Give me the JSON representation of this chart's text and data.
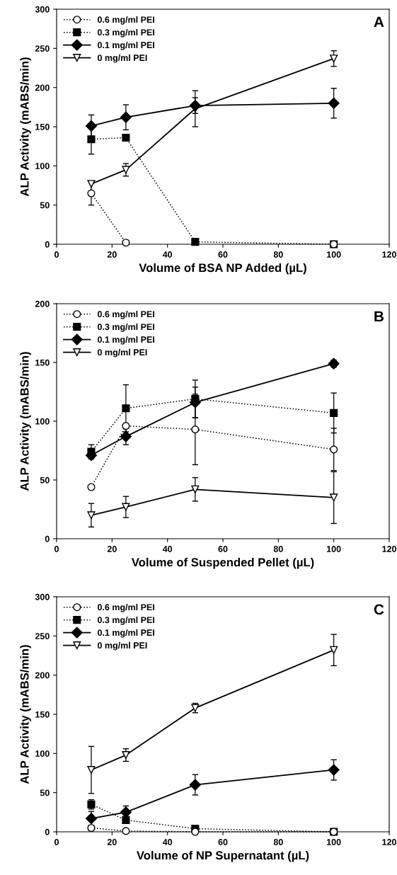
{
  "chart_data": [
    {
      "type": "line",
      "xlabel": "Volume of BSA NP Added (µL)",
      "ylabel": "ALP Activity (mABS/min)",
      "annotations": [
        "A"
      ],
      "xlim": [
        0,
        120
      ],
      "xticks": [
        0,
        20,
        40,
        60,
        80,
        100,
        120
      ],
      "ylim": [
        0,
        300
      ],
      "yticks": [
        0,
        50,
        100,
        150,
        200,
        250,
        300
      ],
      "legend": "top left",
      "grid": false,
      "x": [
        12.5,
        25,
        50,
        100
      ],
      "series": [
        {
          "name": "0.6 mg/ml PEI",
          "color": "#000000",
          "marker": "circle",
          "line_style": "dotted",
          "values": [
            65,
            2,
            null,
            0
          ],
          "errors": [
            15,
            null,
            null,
            null
          ]
        },
        {
          "name": "0.3 mg/ml PEI",
          "color": "#000000",
          "marker": "square",
          "line_style": "dotted",
          "values": [
            134,
            136,
            3,
            0
          ],
          "errors": [
            19,
            3,
            null,
            null
          ]
        },
        {
          "name": "0.1 mg/ml PEI",
          "color": "#000000",
          "marker": "diamond",
          "line_style": "solid",
          "values": [
            151,
            162,
            177,
            180
          ],
          "errors": [
            14,
            16,
            10,
            19
          ]
        },
        {
          "name": "0 mg/ml PEI",
          "color": "#000000",
          "marker": "triangle",
          "line_style": "solid",
          "values": [
            77,
            95,
            173,
            237
          ],
          "errors": [
            null,
            8,
            23,
            10
          ]
        }
      ]
    },
    {
      "type": "line",
      "xlabel": "Volume of Suspended Pellet (µL)",
      "ylabel": "ALP Activity (mABS/min)",
      "annotations": [
        "B"
      ],
      "xlim": [
        0,
        120
      ],
      "xticks": [
        0,
        20,
        40,
        60,
        80,
        100,
        120
      ],
      "ylim": [
        0,
        200
      ],
      "yticks": [
        0,
        50,
        100,
        150,
        200
      ],
      "legend": "top left",
      "grid": false,
      "x": [
        12.5,
        25,
        50,
        100
      ],
      "series": [
        {
          "name": "0.6 mg/ml PEI",
          "color": "#000000",
          "marker": "circle",
          "line_style": "dotted",
          "values": [
            44,
            96,
            93,
            76
          ],
          "errors": [
            null,
            null,
            30,
            18
          ]
        },
        {
          "name": "0.3 mg/ml PEI",
          "color": "#000000",
          "marker": "square",
          "line_style": "dotted",
          "values": [
            74,
            111,
            119,
            107
          ],
          "errors": [
            6,
            20,
            16,
            17
          ]
        },
        {
          "name": "0.1 mg/ml PEI",
          "color": "#000000",
          "marker": "diamond",
          "line_style": "solid",
          "values": [
            71,
            87,
            116,
            149
          ],
          "errors": [
            3,
            7,
            13,
            3
          ]
        },
        {
          "name": "0 mg/ml PEI",
          "color": "#000000",
          "marker": "triangle",
          "line_style": "solid",
          "values": [
            20,
            27,
            42,
            35
          ],
          "errors": [
            10,
            9,
            10,
            22
          ]
        }
      ]
    },
    {
      "type": "line",
      "xlabel": "Volume of NP Supernatant (µL)",
      "ylabel": "ALP Activity (mABS/min)",
      "annotations": [
        "C"
      ],
      "xlim": [
        0,
        120
      ],
      "xticks": [
        0,
        20,
        40,
        60,
        80,
        100,
        120
      ],
      "ylim": [
        0,
        300
      ],
      "yticks": [
        0,
        50,
        100,
        150,
        200,
        250,
        300
      ],
      "legend": "top left",
      "grid": false,
      "x": [
        12.5,
        25,
        50,
        100
      ],
      "series": [
        {
          "name": "0.6 mg/ml PEI",
          "color": "#000000",
          "marker": "circle",
          "line_style": "dotted",
          "values": [
            5,
            1,
            0,
            0
          ],
          "errors": [
            3,
            null,
            null,
            null
          ]
        },
        {
          "name": "0.3 mg/ml PEI",
          "color": "#000000",
          "marker": "square",
          "line_style": "dotted",
          "values": [
            35,
            15,
            4,
            0
          ],
          "errors": [
            6,
            null,
            null,
            null
          ]
        },
        {
          "name": "0.1 mg/ml PEI",
          "color": "#000000",
          "marker": "diamond",
          "line_style": "solid",
          "values": [
            17,
            25,
            60,
            79
          ],
          "errors": [
            9,
            8,
            13,
            13
          ]
        },
        {
          "name": "0 mg/ml PEI",
          "color": "#000000",
          "marker": "triangle",
          "line_style": "solid",
          "values": [
            79,
            98,
            158,
            232
          ],
          "errors": [
            30,
            8,
            6,
            20
          ]
        }
      ]
    }
  ]
}
